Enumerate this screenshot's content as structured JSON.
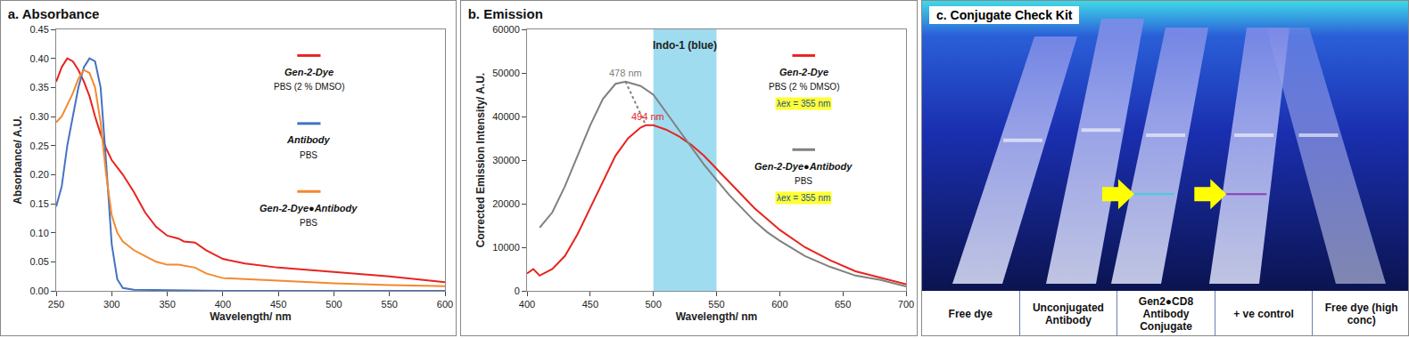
{
  "chart_data": [
    {
      "type": "line",
      "title": "a. Absorbance",
      "x_label": "Wavelength/ nm",
      "y_label": "Absorbance/ A.U.",
      "xlim": [
        250,
        600
      ],
      "xticks": [
        250,
        300,
        350,
        400,
        450,
        500,
        550,
        600
      ],
      "ylim": [
        0,
        0.45
      ],
      "yticks": [
        {
          "value": 0,
          "label": "0.00"
        },
        0.05,
        {
          "value": 0.1,
          "label": "0.10"
        },
        0.15,
        {
          "value": 0.2,
          "label": "0.20"
        },
        0.25,
        {
          "value": 0.3,
          "label": "0.30"
        },
        0.35,
        {
          "value": 0.4,
          "label": "0.40"
        },
        0.45
      ],
      "grid": false,
      "series": [
        {
          "name": "Gen-2-Dye",
          "color": "#e8231f",
          "annotations": [
            "PBS (2 % DMSO)"
          ],
          "x": [
            250,
            255,
            260,
            265,
            270,
            275,
            280,
            285,
            290,
            295,
            300,
            310,
            320,
            330,
            340,
            350,
            360,
            365,
            375,
            385,
            400,
            420,
            450,
            500,
            550,
            600
          ],
          "values": [
            0.36,
            0.385,
            0.4,
            0.395,
            0.38,
            0.36,
            0.335,
            0.3,
            0.27,
            0.245,
            0.225,
            0.2,
            0.17,
            0.135,
            0.11,
            0.095,
            0.09,
            0.085,
            0.083,
            0.07,
            0.055,
            0.047,
            0.04,
            0.033,
            0.025,
            0.015
          ]
        },
        {
          "name": "Antibody",
          "color": "#4472c4",
          "annotations": [
            "PBS"
          ],
          "x": [
            250,
            255,
            260,
            265,
            270,
            275,
            280,
            285,
            290,
            295,
            300,
            305,
            310,
            320,
            400,
            600
          ],
          "values": [
            0.145,
            0.18,
            0.25,
            0.3,
            0.35,
            0.385,
            0.4,
            0.395,
            0.35,
            0.22,
            0.08,
            0.02,
            0.005,
            0.002,
            0,
            0
          ]
        },
        {
          "name": "Gen-2-Dye●Antibody",
          "color": "#f28a2e",
          "annotations": [
            "PBS"
          ],
          "x": [
            250,
            255,
            260,
            265,
            270,
            275,
            280,
            285,
            290,
            295,
            300,
            305,
            310,
            320,
            330,
            340,
            350,
            360,
            375,
            385,
            400,
            450,
            500,
            550,
            600
          ],
          "values": [
            0.29,
            0.3,
            0.32,
            0.34,
            0.365,
            0.38,
            0.375,
            0.35,
            0.29,
            0.2,
            0.13,
            0.1,
            0.085,
            0.07,
            0.06,
            0.05,
            0.045,
            0.045,
            0.04,
            0.03,
            0.022,
            0.017,
            0.013,
            0.01,
            0.008
          ]
        }
      ]
    },
    {
      "type": "line",
      "title": "b. Emission",
      "x_label": "Wavelength/ nm",
      "y_label": "Corrected Emission Intensity/ A.U.",
      "xlim": [
        400,
        700
      ],
      "xticks": [
        400,
        450,
        500,
        550,
        600,
        650,
        700
      ],
      "ylim": [
        0,
        60000
      ],
      "yticks": [
        0,
        10000,
        20000,
        30000,
        40000,
        50000,
        60000
      ],
      "grid": false,
      "band": {
        "text": "Indo-1 (blue)",
        "x": [
          500,
          550
        ],
        "color": "#9fdcf0"
      },
      "peaks": [
        {
          "text": "478 nm",
          "x": 478,
          "y": 48000,
          "color": "#808080"
        },
        {
          "text": "494 nm",
          "x": 494,
          "y": 38000,
          "color": "#e8231f"
        }
      ],
      "series": [
        {
          "name": "Gen-2-Dye",
          "color": "#e8231f",
          "annotations": [
            "PBS (2 % DMSO)",
            "λex = 355 nm"
          ],
          "x": [
            400,
            405,
            410,
            420,
            430,
            440,
            450,
            460,
            470,
            480,
            490,
            494,
            500,
            510,
            520,
            530,
            540,
            550,
            560,
            570,
            580,
            590,
            600,
            620,
            640,
            660,
            680,
            700
          ],
          "values": [
            4000,
            5000,
            3500,
            5000,
            8000,
            13000,
            19000,
            25000,
            31000,
            35000,
            37500,
            38000,
            38000,
            37000,
            35500,
            33500,
            31000,
            28000,
            25000,
            22000,
            19000,
            16500,
            14000,
            10000,
            7000,
            4500,
            3000,
            1500
          ]
        },
        {
          "name": "Gen-2-Dye●Antibody",
          "color": "#808080",
          "annotations": [
            "PBS",
            "λex = 355 nm"
          ],
          "x": [
            410,
            420,
            430,
            440,
            450,
            460,
            470,
            478,
            485,
            490,
            500,
            510,
            520,
            530,
            540,
            550,
            560,
            570,
            580,
            590,
            600,
            620,
            640,
            660,
            680,
            700
          ],
          "values": [
            14500,
            18000,
            24000,
            31000,
            38000,
            44000,
            47500,
            48000,
            47500,
            47000,
            45000,
            41000,
            37000,
            33000,
            29000,
            25500,
            22000,
            19000,
            16000,
            13500,
            11500,
            8000,
            5500,
            3500,
            2500,
            1000
          ]
        }
      ]
    }
  ],
  "photo": {
    "title": "c. Conjugate Check Kit",
    "labels": [
      "Free dye",
      "Unconjugated Antibody",
      "Gen2●CD8 Antibody Conjugate",
      "+ ve control",
      "Free dye (high conc)"
    ]
  }
}
